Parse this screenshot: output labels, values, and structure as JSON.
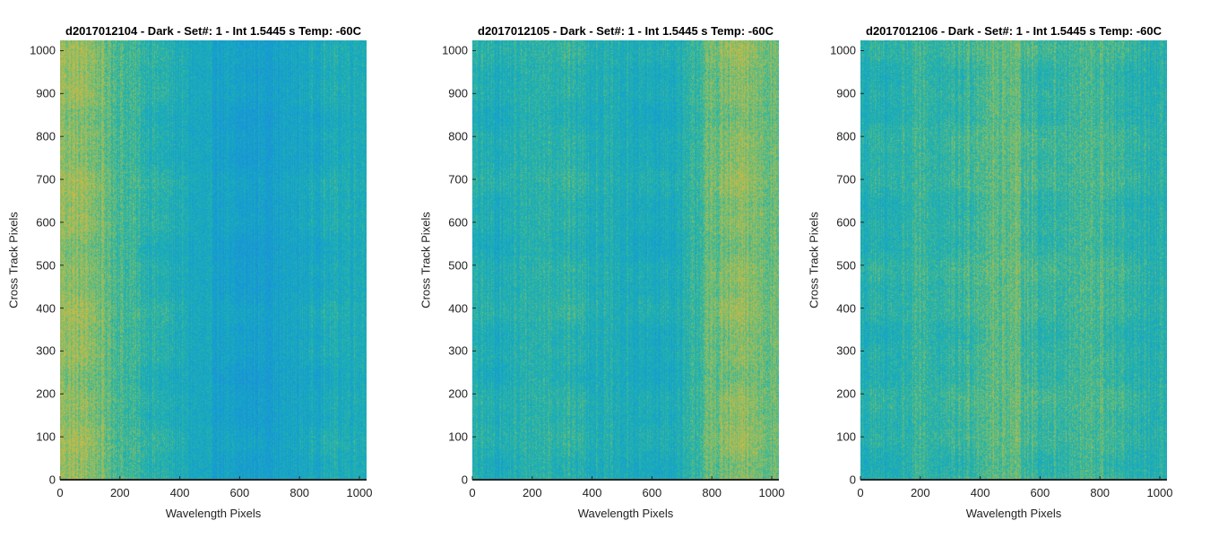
{
  "chart_data": [
    {
      "type": "heatmap",
      "title": "d2017012104 - Dark - Set#: 1 - Int 1.5445 s Temp: -60C",
      "xlabel": "Wavelength Pixels",
      "ylabel": "Cross Track Pixels",
      "xlim": [
        0,
        1024
      ],
      "ylim": [
        0,
        1024
      ],
      "xticks": [
        0,
        200,
        400,
        600,
        800,
        1000
      ],
      "yticks": [
        0,
        100,
        200,
        300,
        400,
        500,
        600,
        700,
        800,
        900,
        1000
      ],
      "colormap": "parula",
      "column_profile": {
        "x": [
          0,
          100,
          200,
          300,
          400,
          500,
          600,
          700,
          800,
          900,
          1024
        ],
        "relative_level": [
          0.85,
          0.8,
          0.62,
          0.5,
          0.4,
          0.3,
          0.22,
          0.25,
          0.32,
          0.4,
          0.45
        ]
      }
    },
    {
      "type": "heatmap",
      "title": "d2017012105 - Dark - Set#: 1 - Int 1.5445 s Temp: -60C",
      "xlabel": "Wavelength Pixels",
      "ylabel": "Cross Track Pixels",
      "xlim": [
        0,
        1024
      ],
      "ylim": [
        0,
        1024
      ],
      "xticks": [
        0,
        200,
        400,
        600,
        800,
        1000
      ],
      "yticks": [
        0,
        100,
        200,
        300,
        400,
        500,
        600,
        700,
        800,
        900,
        1000
      ],
      "colormap": "parula",
      "column_profile": {
        "x": [
          0,
          100,
          200,
          300,
          400,
          500,
          600,
          700,
          800,
          900,
          1024
        ],
        "relative_level": [
          0.45,
          0.42,
          0.5,
          0.52,
          0.45,
          0.4,
          0.38,
          0.42,
          0.72,
          0.8,
          0.72
        ]
      }
    },
    {
      "type": "heatmap",
      "title": "d2017012106 - Dark - Set#: 1 - Int 1.5445 s Temp: -60C",
      "xlabel": "Wavelength Pixels",
      "ylabel": "Cross Track Pixels",
      "xlim": [
        0,
        1024
      ],
      "ylim": [
        0,
        1024
      ],
      "xticks": [
        0,
        200,
        400,
        600,
        800,
        1000
      ],
      "yticks": [
        0,
        100,
        200,
        300,
        400,
        500,
        600,
        700,
        800,
        900,
        1000
      ],
      "colormap": "parula",
      "column_profile": {
        "x": [
          0,
          100,
          200,
          300,
          400,
          500,
          600,
          700,
          800,
          900,
          1024
        ],
        "relative_level": [
          0.45,
          0.48,
          0.55,
          0.5,
          0.65,
          0.7,
          0.55,
          0.58,
          0.62,
          0.48,
          0.45
        ]
      }
    }
  ]
}
